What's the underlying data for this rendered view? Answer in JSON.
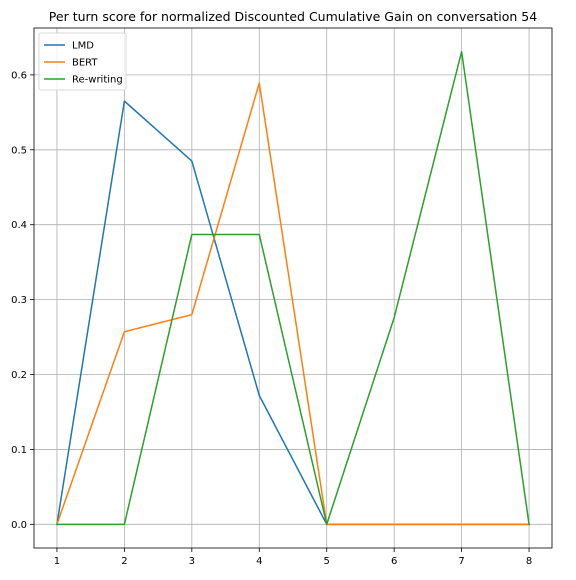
{
  "chart_data": {
    "type": "line",
    "title": "Per turn score for normalized Discounted Cumulative Gain on conversation 54",
    "xlabel": "",
    "ylabel": "",
    "x": [
      1,
      2,
      3,
      4,
      5,
      6,
      7,
      8
    ],
    "xlim": [
      0.66,
      8.34
    ],
    "ylim": [
      -0.0316,
      0.6626
    ],
    "xticks": [
      1,
      2,
      3,
      4,
      5,
      6,
      7,
      8
    ],
    "yticks": [
      0.0,
      0.1,
      0.2,
      0.3,
      0.4,
      0.5,
      0.6
    ],
    "ytick_labels": [
      "0.0",
      "0.1",
      "0.2",
      "0.3",
      "0.4",
      "0.5",
      "0.6"
    ],
    "grid": true,
    "legend_position": "upper-left",
    "series": [
      {
        "name": "LMD",
        "color": "#1f77b4",
        "values": [
          0.0,
          0.565,
          0.485,
          0.172,
          0.0,
          0.0,
          0.0,
          0.0
        ]
      },
      {
        "name": "BERT",
        "color": "#ff7f0e",
        "values": [
          0.0,
          0.257,
          0.28,
          0.589,
          0.0,
          0.0,
          0.0,
          0.0
        ]
      },
      {
        "name": "Re-writing",
        "color": "#2ca02c",
        "values": [
          0.0,
          0.0,
          0.387,
          0.387,
          0.0,
          0.276,
          0.631,
          0.0
        ]
      }
    ]
  }
}
